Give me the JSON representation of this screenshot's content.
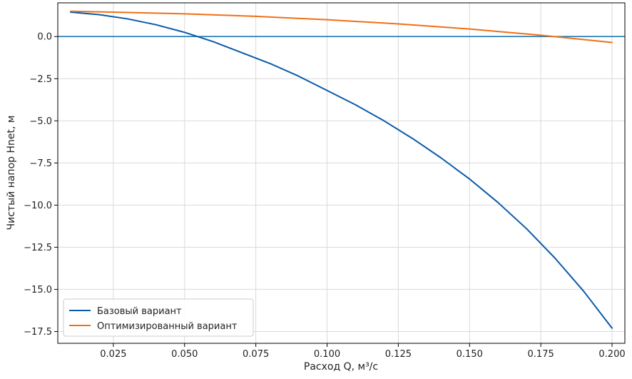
{
  "chart_data": {
    "type": "line",
    "xlabel": "Расход Q, м³/с",
    "ylabel": "Чистый напор Hnet, м",
    "xlim": [
      0.0055,
      0.2045
    ],
    "ylim": [
      -18.2,
      2.0
    ],
    "x_ticks": [
      0.025,
      0.05,
      0.075,
      0.1,
      0.125,
      0.15,
      0.175,
      0.2
    ],
    "x_tick_labels": [
      "0.025",
      "0.050",
      "0.075",
      "0.100",
      "0.125",
      "0.150",
      "0.175",
      "0.200"
    ],
    "y_ticks": [
      0.0,
      -2.5,
      -5.0,
      -7.5,
      -10.0,
      -12.5,
      -15.0,
      -17.5
    ],
    "y_tick_labels": [
      "0.0",
      "−2.5",
      "−5.0",
      "−7.5",
      "−10.0",
      "−12.5",
      "−15.0",
      "−17.5"
    ],
    "grid": true,
    "legend_position": "lower-left",
    "reference_line": {
      "y": 0.0,
      "color": "#1f77b4"
    },
    "series": [
      {
        "name": "Базовый вариант",
        "color": "#0b5aa8",
        "x": [
          0.01,
          0.02,
          0.03,
          0.04,
          0.05,
          0.06,
          0.07,
          0.08,
          0.09,
          0.1,
          0.11,
          0.12,
          0.13,
          0.14,
          0.15,
          0.16,
          0.17,
          0.18,
          0.19,
          0.2
        ],
        "y": [
          1.45,
          1.3,
          1.05,
          0.7,
          0.25,
          -0.3,
          -0.95,
          -1.6,
          -2.35,
          -3.2,
          -4.05,
          -5.0,
          -6.05,
          -7.2,
          -8.45,
          -9.85,
          -11.4,
          -13.15,
          -15.1,
          -17.3
        ]
      },
      {
        "name": "Оптимизированный вариант",
        "color": "#f07016",
        "x": [
          0.01,
          0.025,
          0.05,
          0.075,
          0.1,
          0.125,
          0.15,
          0.175,
          0.2
        ],
        "y": [
          1.5,
          1.45,
          1.35,
          1.2,
          1.0,
          0.75,
          0.45,
          0.08,
          -0.35
        ]
      }
    ]
  }
}
